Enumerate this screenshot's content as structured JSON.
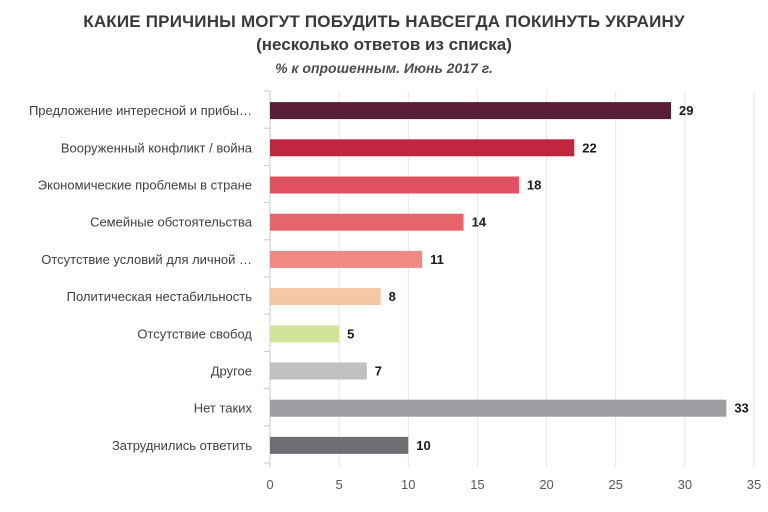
{
  "title": "КАКИЕ ПРИЧИНЫ МОГУТ ПОБУДИТЬ НАВСЕГДА ПОКИНУТЬ УКРАИНУ",
  "subtitle": "(несколько ответов из списка)",
  "note": "% к опрошенным. Июнь 2017 г.",
  "chart_data": {
    "type": "bar",
    "orientation": "horizontal",
    "title": "КАКИЕ ПРИЧИНЫ МОГУТ ПОБУДИТЬ НАВСЕГДА ПОКИНУТЬ УКРАИНУ",
    "subtitle": "(несколько ответов из списка)",
    "note": "% к опрошенным. Июнь 2017 г.",
    "categories": [
      "Предложение интересной и прибы…",
      "Вооруженный конфликт / война",
      "Экономические проблемы в стране",
      "Семейные обстоятельства",
      "Отсутствие условий для личной …",
      "Политическая нестабильность",
      "Отсутствие свобод",
      "Другое",
      "Нет таких",
      "Затруднились ответить"
    ],
    "values": [
      29,
      22,
      18,
      14,
      11,
      8,
      5,
      7,
      33,
      10
    ],
    "colors": [
      "#5a1f36",
      "#c0273f",
      "#e0505f",
      "#e5656a",
      "#f08a82",
      "#f6c7a5",
      "#d4e39a",
      "#bfc0c2",
      "#9c9da0",
      "#6e6f72"
    ],
    "xlim": [
      0,
      35
    ],
    "xticks": [
      0,
      5,
      10,
      15,
      20,
      25,
      30,
      35
    ],
    "xlabel": "",
    "ylabel": "",
    "grid": true,
    "legend": "none"
  }
}
